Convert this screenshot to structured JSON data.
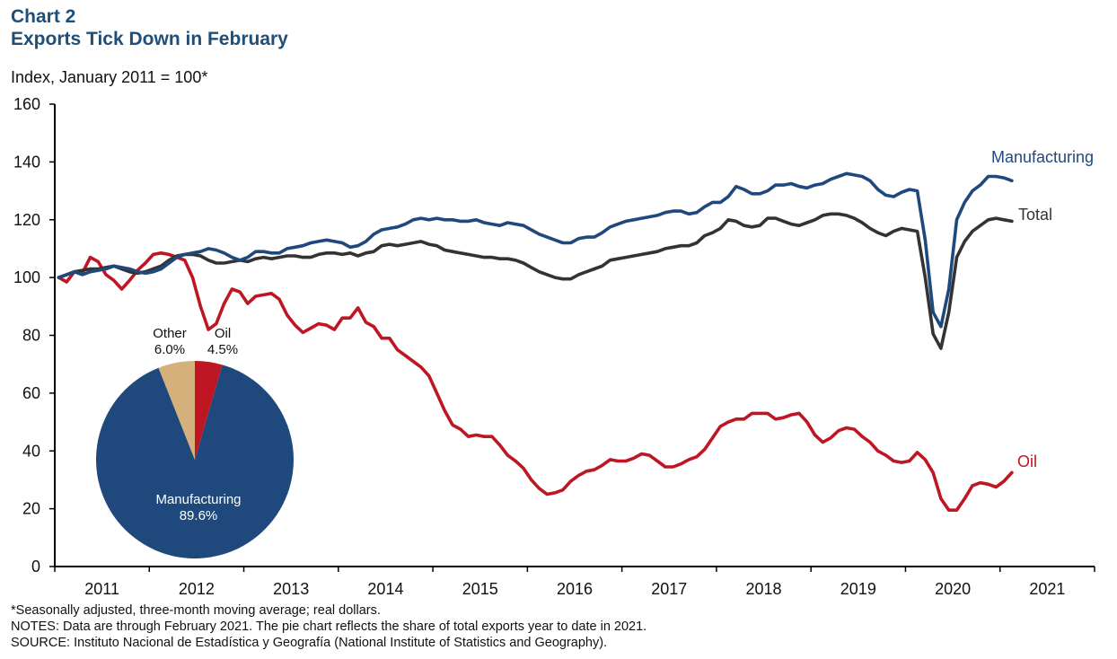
{
  "header": {
    "chart_number": "Chart 2",
    "title": "Exports Tick Down in February",
    "subtitle": "Index, January 2011 = 100*"
  },
  "footer": {
    "footnote": "*Seasonally adjusted, three-month moving average; real dollars.",
    "notes": "NOTES:  Data are through February 2021. The pie chart reflects the share of total exports year to date in 2021.",
    "source": "SOURCE:  Instituto Nacional de Estadística y Geografía (National Institute of Statistics and Geography)."
  },
  "colors": {
    "title": "#1f4e79",
    "manufacturing": "#1f497d",
    "total": "#333333",
    "oil": "#be1622",
    "other": "#d4b07a"
  },
  "chart_data": [
    {
      "type": "line",
      "title": "Exports Tick Down in February",
      "ylabel": "Index, January 2011 = 100*",
      "xlabel": "",
      "ylim": [
        0,
        160
      ],
      "yticks": [
        0,
        20,
        40,
        60,
        80,
        100,
        120,
        140,
        160
      ],
      "x_categories": [
        "2011",
        "2012",
        "2013",
        "2014",
        "2015",
        "2016",
        "2017",
        "2018",
        "2019",
        "2020",
        "2021"
      ],
      "x_start": "2011-01",
      "x_end": "2021-02",
      "frequency": "monthly",
      "grid": false,
      "series": [
        {
          "name": "Manufacturing",
          "label": "Manufacturing",
          "color": "#1f497d",
          "values": [
            100,
            101,
            102,
            101,
            102,
            102.5,
            103,
            104,
            103.5,
            103,
            102,
            101.5,
            102,
            103,
            105,
            107,
            108,
            108.5,
            109,
            110,
            109.5,
            108.5,
            107,
            106,
            107,
            109,
            109,
            108.5,
            108.5,
            110,
            110.5,
            111,
            112,
            112.5,
            113,
            112.5,
            112,
            110.5,
            111,
            112.5,
            115,
            116.5,
            117,
            117.5,
            118.5,
            120,
            120.5,
            120,
            120.5,
            120,
            120,
            119.5,
            119.5,
            120,
            119,
            118.5,
            118,
            119,
            118.5,
            118,
            116.5,
            115,
            114,
            113,
            112,
            112,
            113.5,
            114,
            114,
            115.5,
            117.5,
            118.5,
            119.5,
            120,
            120.5,
            121,
            121.5,
            122.5,
            123,
            123,
            122,
            122.5,
            124.5,
            126,
            126,
            128,
            131.5,
            130.5,
            129,
            129,
            130,
            132,
            132,
            132.5,
            131.5,
            131,
            132,
            132.5,
            134,
            135,
            136,
            135.5,
            135,
            133.5,
            130.5,
            128.5,
            128,
            129.5,
            130.5,
            130,
            113,
            88,
            83,
            96,
            120,
            126,
            130,
            132,
            135,
            135,
            134.5,
            133.5
          ]
        },
        {
          "name": "Total",
          "label": "Total",
          "color": "#333333",
          "values": [
            100,
            101,
            102,
            102.5,
            103,
            103,
            103.5,
            104,
            103,
            102,
            101.5,
            102,
            103,
            104,
            106,
            107.5,
            108,
            108,
            107.5,
            106,
            105,
            105,
            105.5,
            106,
            105.5,
            106.5,
            107,
            106.5,
            107,
            107.5,
            107.5,
            107,
            107,
            108,
            108.5,
            108.5,
            108,
            108.5,
            107.5,
            108.5,
            109,
            111,
            111.5,
            111,
            111.5,
            112,
            112.5,
            111.5,
            111,
            109.5,
            109,
            108.5,
            108,
            107.5,
            107,
            107,
            106.5,
            106.5,
            106,
            105,
            103.5,
            102,
            101,
            100,
            99.5,
            99.5,
            101,
            102,
            103,
            104,
            106,
            106.5,
            107,
            107.5,
            108,
            108.5,
            109,
            110,
            110.5,
            111,
            111,
            112,
            114.5,
            115.5,
            117,
            120,
            119.5,
            118,
            117.5,
            118,
            120.5,
            120.5,
            119.5,
            118.5,
            118,
            119,
            120,
            121.5,
            122,
            122,
            121.5,
            120.5,
            119,
            117,
            115.5,
            114.5,
            116,
            117,
            116.5,
            116,
            100,
            80.5,
            75.5,
            88,
            107,
            112.5,
            116,
            118,
            120,
            120.5,
            120,
            119.5
          ]
        },
        {
          "name": "Oil",
          "label": "Oil",
          "color": "#be1622",
          "values": [
            100,
            98.5,
            102,
            101.5,
            107,
            105.5,
            101,
            99,
            96,
            99,
            102.5,
            105,
            108,
            108.5,
            108,
            107,
            106,
            100,
            90,
            82,
            84,
            91,
            96,
            95,
            91,
            93.5,
            94,
            94.5,
            92.5,
            87,
            83.5,
            81,
            82.5,
            84,
            83.5,
            82,
            86,
            86,
            89.5,
            84.5,
            83,
            79,
            79,
            75,
            73,
            71,
            69,
            66,
            60,
            54,
            49,
            47.5,
            45,
            45.5,
            45,
            45,
            42,
            38.5,
            36.5,
            34,
            30,
            27,
            25,
            25.5,
            26.5,
            29.5,
            31.5,
            33,
            33.5,
            35,
            37,
            36.5,
            36.5,
            37.5,
            39,
            38.5,
            36.5,
            34.5,
            34.5,
            35.5,
            37,
            38,
            40.5,
            44.5,
            48.5,
            50,
            51,
            51,
            53,
            53,
            53,
            51,
            51.5,
            52.5,
            53,
            50,
            45.5,
            43,
            44.5,
            47,
            48,
            47.5,
            45,
            43,
            40,
            38.5,
            36.5,
            36,
            36.5,
            39.5,
            37,
            32.5,
            23.5,
            19.5,
            19.5,
            23.5,
            28,
            29,
            28.5,
            27.5,
            29.5,
            32.5
          ]
        }
      ],
      "annotations": [
        "Manufacturing",
        "Total",
        "Oil"
      ]
    },
    {
      "type": "pie",
      "title": "Share of total exports year to date in 2021",
      "slices": [
        {
          "label": "Oil",
          "value": 4.5,
          "display": "4.5%",
          "color": "#be1622"
        },
        {
          "label": "Manufacturing",
          "value": 89.6,
          "display": "89.6%",
          "color": "#1f497d"
        },
        {
          "label": "Other",
          "value": 6.0,
          "display": "6.0%",
          "color": "#d4b07a"
        }
      ]
    }
  ]
}
